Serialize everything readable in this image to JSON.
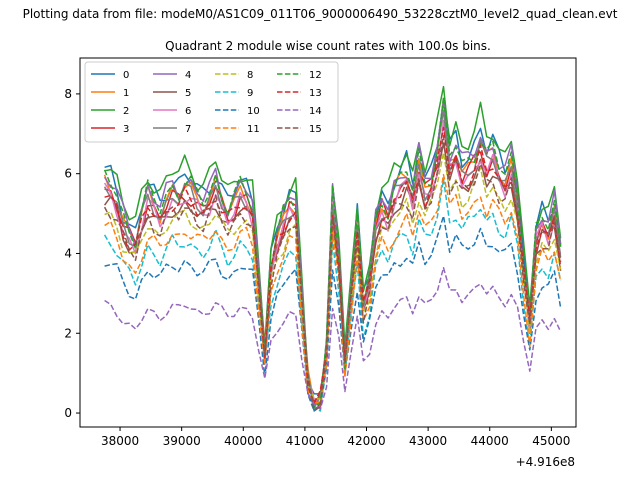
{
  "chart_data": {
    "type": "line",
    "suptitle": "Plotting data from file: modeM0/AS1C09_011T06_9000006490_53228cztM0_level2_quad_clean.evt",
    "title": "Quadrant 2 module wise count rates with 100.0s bins.",
    "xlabel": "",
    "ylabel": "",
    "x_offset_label": "+4.916e8",
    "xlim": [
      37350,
      45400
    ],
    "ylim": [
      -0.35,
      8.9
    ],
    "xticks": [
      38000,
      39000,
      40000,
      41000,
      42000,
      43000,
      44000,
      45000
    ],
    "xtick_labels": [
      "38000",
      "39000",
      "40000",
      "41000",
      "42000",
      "43000",
      "44000",
      "45000"
    ],
    "yticks": [
      0,
      2,
      4,
      6,
      8
    ],
    "ytick_labels": [
      "0",
      "2",
      "4",
      "6",
      "8"
    ],
    "grid": false,
    "legend_position": "upper-left",
    "legend_ncol": 4,
    "bin_seconds": 100,
    "x_start": 37750,
    "n_points": 75,
    "base_profile": [
      5.5,
      5.4,
      5.1,
      4.6,
      4.3,
      4.1,
      4.7,
      5.2,
      5.0,
      4.8,
      5.1,
      5.3,
      5.2,
      5.4,
      5.3,
      5.1,
      5.0,
      5.2,
      5.5,
      5.1,
      4.8,
      5.0,
      5.3,
      5.2,
      4.9,
      3.2,
      1.5,
      3.5,
      4.2,
      4.6,
      5.0,
      5.0,
      2.8,
      0.8,
      0.2,
      0.3,
      1.5,
      5.2,
      3.8,
      1.2,
      3.0,
      4.6,
      2.6,
      3.2,
      4.5,
      5.0,
      4.8,
      5.3,
      5.5,
      5.7,
      5.2,
      6.0,
      5.4,
      5.6,
      6.2,
      7.2,
      6.0,
      6.3,
      5.8,
      5.9,
      6.1,
      6.5,
      6.0,
      6.2,
      5.8,
      5.6,
      6.0,
      5.1,
      3.5,
      2.2,
      4.2,
      4.6,
      4.4,
      4.9,
      3.9
    ],
    "series": [
      {
        "name": "0",
        "color": "#1f77b4",
        "dash": "solid",
        "scale": 1.1
      },
      {
        "name": "1",
        "color": "#ff7f0e",
        "dash": "solid",
        "scale": 1.05
      },
      {
        "name": "2",
        "color": "#2ca02c",
        "dash": "solid",
        "scale": 1.15
      },
      {
        "name": "3",
        "color": "#d62728",
        "dash": "solid",
        "scale": 1.02
      },
      {
        "name": "4",
        "color": "#9467bd",
        "dash": "solid",
        "scale": 1.08
      },
      {
        "name": "5",
        "color": "#8c564b",
        "dash": "solid",
        "scale": 0.97
      },
      {
        "name": "6",
        "color": "#e377c2",
        "dash": "solid",
        "scale": 1.0
      },
      {
        "name": "7",
        "color": "#7f7f7f",
        "dash": "solid",
        "scale": 1.03
      },
      {
        "name": "8",
        "color": "#bcbd22",
        "dash": "dashed",
        "scale": 0.92
      },
      {
        "name": "9",
        "color": "#17becf",
        "dash": "dashed",
        "scale": 0.8
      },
      {
        "name": "10",
        "color": "#1f77b4",
        "dash": "dashed",
        "scale": 0.7
      },
      {
        "name": "11",
        "color": "#ff7f0e",
        "dash": "dashed",
        "scale": 0.85
      },
      {
        "name": "12",
        "color": "#2ca02c",
        "dash": "dashed",
        "scale": 1.07
      },
      {
        "name": "13",
        "color": "#d62728",
        "dash": "dashed",
        "scale": 1.0
      },
      {
        "name": "14",
        "color": "#9467bd",
        "dash": "dashed",
        "scale": 0.5
      },
      {
        "name": "15",
        "color": "#8c564b",
        "dash": "dashed",
        "scale": 0.95
      }
    ]
  }
}
